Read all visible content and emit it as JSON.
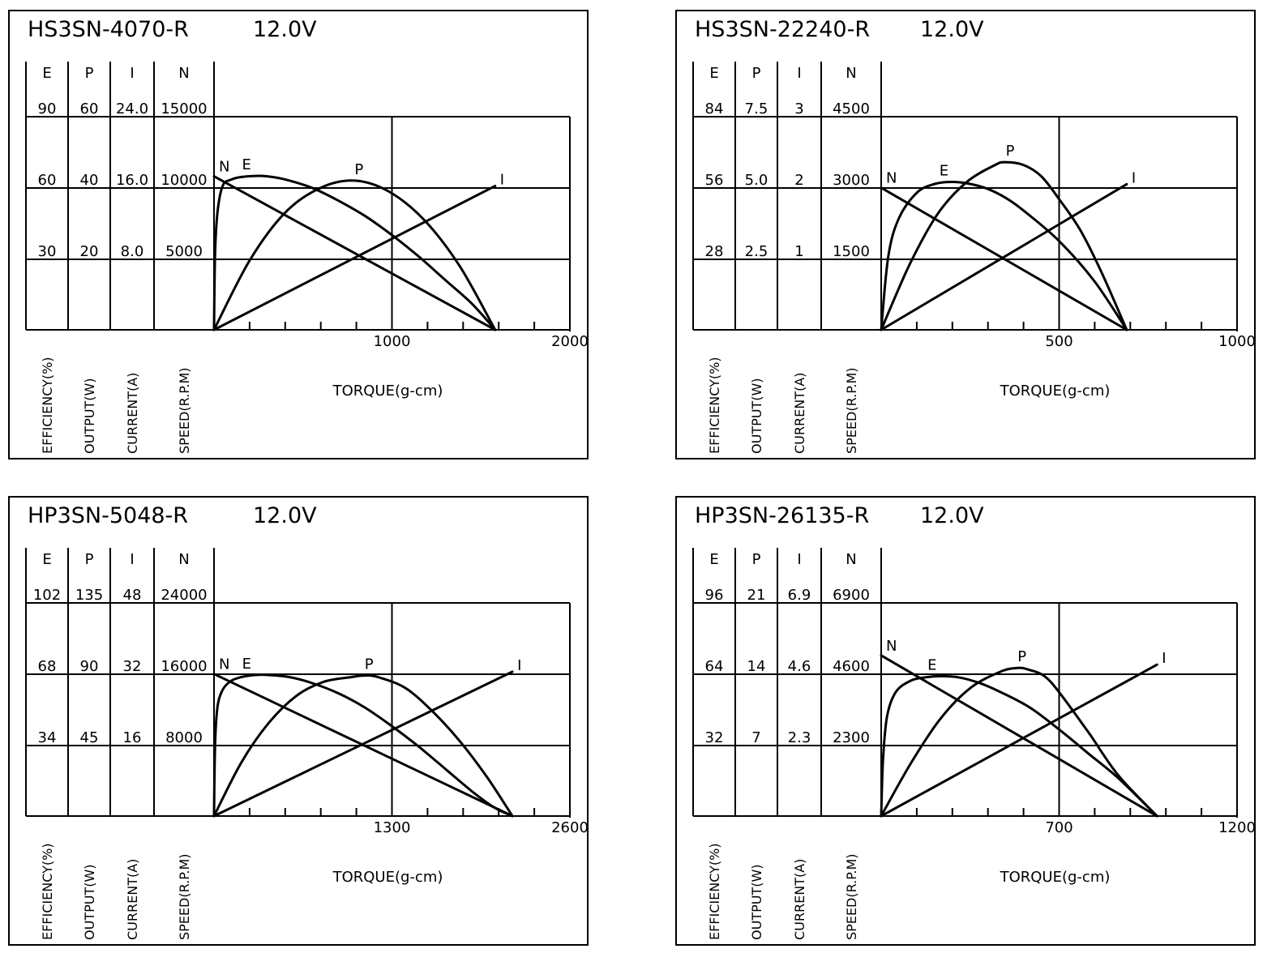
{
  "chart_data": [
    {
      "type": "line",
      "title": "HS3SN-4070-R",
      "voltage": "12.0V",
      "xlabel": "TORQUE(g-cm)",
      "xlim": [
        0,
        2000
      ],
      "x_ticklabels": [
        "1000",
        "2000"
      ],
      "y_axes": [
        {
          "symbol": "E",
          "label": "EFFICIENCY(%)",
          "ticks": [
            "90",
            "60",
            "30"
          ],
          "max": 90
        },
        {
          "symbol": "P",
          "label": "OUTPUT(W)",
          "ticks": [
            "60",
            "40",
            "20"
          ],
          "max": 60
        },
        {
          "symbol": "I",
          "label": "CURRENT(A)",
          "ticks": [
            "24.0",
            "16.0",
            "8.0"
          ],
          "max": 24
        },
        {
          "symbol": "N",
          "label": "SPEED(R.P.M)",
          "ticks": [
            "15000",
            "10000",
            "5000"
          ],
          "max": 15000
        }
      ],
      "series": [
        {
          "name": "N",
          "axis": 3,
          "x": [
            0,
            1580
          ],
          "y": [
            10800,
            0
          ]
        },
        {
          "name": "E",
          "axis": 0,
          "x": [
            0,
            6,
            20,
            50,
            100,
            150,
            230,
            300,
            400,
            550,
            700,
            850,
            1000,
            1150,
            1300,
            1450,
            1580
          ],
          "y": [
            0,
            32,
            50,
            61,
            63.5,
            64.5,
            65,
            64.8,
            63.5,
            60,
            54.5,
            48,
            40,
            31,
            21,
            11,
            0
          ]
        },
        {
          "name": "P",
          "axis": 1,
          "x": [
            0,
            200,
            400,
            600,
            790,
            980,
            1180,
            1380,
            1580
          ],
          "y": [
            0,
            19.5,
            33,
            40,
            42,
            39,
            31,
            18,
            0
          ]
        },
        {
          "name": "I",
          "axis": 2,
          "x": [
            0,
            1580
          ],
          "y": [
            0,
            16.2
          ]
        }
      ],
      "curve_labels": [
        "N",
        "E",
        "P",
        "I"
      ]
    },
    {
      "type": "line",
      "title": "HS3SN-22240-R",
      "voltage": "12.0V",
      "xlabel": "TORQUE(g-cm)",
      "xlim": [
        0,
        1000
      ],
      "x_ticklabels": [
        "500",
        "1000"
      ],
      "y_axes": [
        {
          "symbol": "E",
          "label": "EFFICIENCY(%)",
          "ticks": [
            "84",
            "56",
            "28"
          ],
          "max": 84
        },
        {
          "symbol": "P",
          "label": "OUTPUT(W)",
          "ticks": [
            "7.5",
            "5.0",
            "2.5"
          ],
          "max": 7.5
        },
        {
          "symbol": "I",
          "label": "CURRENT(A)",
          "ticks": [
            "3",
            "2",
            "1"
          ],
          "max": 3
        },
        {
          "symbol": "N",
          "label": "SPEED(R.P.M)",
          "ticks": [
            "4500",
            "3000",
            "1500"
          ],
          "max": 4500
        },
        {
          "symbol": "",
          "label": "",
          "ticks": [],
          "max": 0
        }
      ],
      "series": [
        {
          "name": "N",
          "axis": 3,
          "x": [
            0,
            690
          ],
          "y": [
            3000,
            0
          ]
        },
        {
          "name": "E",
          "axis": 0,
          "x": [
            0,
            20,
            50,
            100,
            150,
            200,
            250,
            300,
            350,
            400,
            500,
            600,
            690
          ],
          "y": [
            0,
            29,
            44,
            54,
            57.5,
            58.3,
            57.5,
            55.5,
            52,
            47,
            35,
            19,
            0
          ]
        },
        {
          "name": "P",
          "axis": 1,
          "x": [
            0,
            80,
            160,
            240,
            320,
            350,
            400,
            450,
            500,
            560,
            620,
            690
          ],
          "y": [
            0,
            2.3,
            4.1,
            5.2,
            5.8,
            5.9,
            5.8,
            5.4,
            4.6,
            3.5,
            2.0,
            0
          ]
        },
        {
          "name": "I",
          "axis": 2,
          "x": [
            0,
            690
          ],
          "y": [
            0,
            2.05
          ]
        }
      ],
      "curve_labels": [
        "N",
        "E",
        "P",
        "I"
      ]
    },
    {
      "type": "line",
      "title": "HP3SN-5048-R",
      "voltage": "12.0V",
      "xlabel": "TORQUE(g-cm)",
      "xlim": [
        0,
        2600
      ],
      "x_ticklabels": [
        "1300",
        "2600"
      ],
      "y_axes": [
        {
          "symbol": "E",
          "label": "EFFICIENCY(%)",
          "ticks": [
            "102",
            "68",
            "34"
          ],
          "max": 102
        },
        {
          "symbol": "P",
          "label": "OUTPUT(W)",
          "ticks": [
            "135",
            "90",
            "45"
          ],
          "max": 135
        },
        {
          "symbol": "I",
          "label": "CURRENT(A)",
          "ticks": [
            "48",
            "32",
            "16"
          ],
          "max": 48
        },
        {
          "symbol": "N",
          "label": "SPEED(R.P.M)",
          "ticks": [
            "24000",
            "16000",
            "8000"
          ],
          "max": 24000
        }
      ],
      "series": [
        {
          "name": "N",
          "axis": 3,
          "x": [
            0,
            2180
          ],
          "y": [
            16000,
            0
          ]
        },
        {
          "name": "E",
          "axis": 0,
          "x": [
            0,
            8,
            25,
            60,
            120,
            200,
            300,
            400,
            550,
            700,
            900,
            1100,
            1300,
            1500,
            1700,
            1900,
            2050,
            2180
          ],
          "y": [
            0,
            35,
            52,
            60,
            64.5,
            66.5,
            67.5,
            67.5,
            66.5,
            64,
            59,
            52,
            43,
            33,
            22,
            11,
            4,
            0
          ]
        },
        {
          "name": "P",
          "axis": 1,
          "x": [
            0,
            200,
            400,
            600,
            800,
            1000,
            1100,
            1200,
            1400,
            1600,
            1800,
            2000,
            2180
          ],
          "y": [
            0,
            34,
            59,
            76,
            85,
            88,
            89,
            88,
            81,
            66,
            47,
            24,
            0
          ]
        },
        {
          "name": "I",
          "axis": 2,
          "x": [
            0,
            2180
          ],
          "y": [
            0,
            32.5
          ]
        }
      ],
      "curve_labels": [
        "N",
        "E",
        "P",
        "I"
      ]
    },
    {
      "type": "line",
      "title": "HP3SN-26135-R",
      "voltage": "12.0V",
      "xlabel": "TORQUE(g-cm)",
      "xlim": [
        0,
        1200
      ],
      "x_ticklabels": [
        "700",
        "1200"
      ],
      "y_axes": [
        {
          "symbol": "E",
          "label": "EFFICIENCY(%)",
          "ticks": [
            "96",
            "64",
            "32"
          ],
          "max": 96
        },
        {
          "symbol": "P",
          "label": "OUTPUT(W)",
          "ticks": [
            "21",
            "14",
            "7"
          ],
          "max": 21
        },
        {
          "symbol": "I",
          "label": "CURRENT(A)",
          "ticks": [
            "6.9",
            "4.6",
            "2.3"
          ],
          "max": 6.9
        },
        {
          "symbol": "N",
          "label": "SPEED(R.P.M)",
          "ticks": [
            "6900",
            "4600",
            "2300"
          ],
          "max": 6900
        }
      ],
      "series": [
        {
          "name": "N",
          "axis": 3,
          "x": [
            0,
            930
          ],
          "y": [
            5200,
            0
          ]
        },
        {
          "name": "E",
          "axis": 0,
          "x": [
            0,
            6,
            20,
            50,
            100,
            150,
            200,
            260,
            330,
            400,
            500,
            600,
            700,
            800,
            930
          ],
          "y": [
            0,
            25,
            45,
            56,
            61,
            62.5,
            63,
            62.5,
            60,
            56,
            49,
            39,
            28,
            17,
            0
          ]
        },
        {
          "name": "P",
          "axis": 1,
          "x": [
            0,
            100,
            200,
            300,
            400,
            460,
            500,
            550,
            600,
            700,
            800,
            930
          ],
          "y": [
            0,
            5.2,
            9.6,
            12.6,
            14.2,
            14.6,
            14.4,
            13.8,
            12.2,
            8.2,
            4.0,
            0
          ]
        },
        {
          "name": "I",
          "axis": 2,
          "x": [
            0,
            930
          ],
          "y": [
            0,
            4.9
          ]
        }
      ],
      "curve_labels": [
        "N",
        "E",
        "P",
        "I"
      ]
    }
  ]
}
